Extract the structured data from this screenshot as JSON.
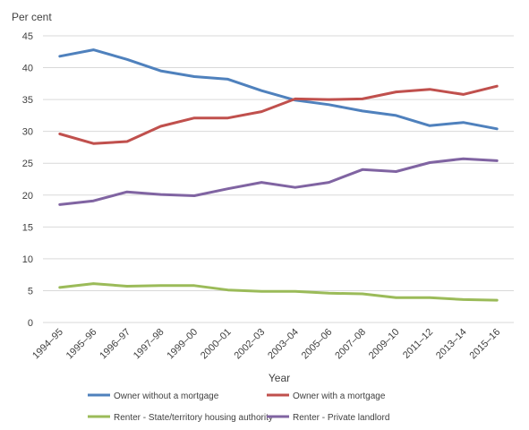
{
  "chart_data": {
    "type": "line",
    "title": "",
    "ylabel": "Per cent",
    "xlabel": "Year",
    "ylim": [
      0,
      45
    ],
    "yticks": [
      0,
      5,
      10,
      15,
      20,
      25,
      30,
      35,
      40,
      45
    ],
    "grid": "horizontal",
    "legend_position": "bottom",
    "categories": [
      "1994–95",
      "1995–96",
      "1996–97",
      "1997–98",
      "1999–00",
      "2000–01",
      "2002–03",
      "2003–04",
      "2005–06",
      "2007–08",
      "2009–10",
      "2011–12",
      "2013–14",
      "2015–16"
    ],
    "series": [
      {
        "name": "Owner without a mortgage",
        "color": "#4f81bd",
        "values": [
          41.8,
          42.8,
          41.3,
          39.5,
          38.6,
          38.2,
          36.4,
          34.9,
          34.2,
          33.2,
          32.5,
          30.9,
          31.4,
          30.4
        ]
      },
      {
        "name": "Owner with a mortgage",
        "color": "#c0504d",
        "values": [
          29.6,
          28.1,
          28.4,
          30.8,
          32.1,
          32.1,
          33.1,
          35.1,
          35.0,
          35.1,
          36.2,
          36.6,
          35.8,
          37.1
        ]
      },
      {
        "name": "Renter - State/territory housing authority",
        "color": "#9bbb59",
        "values": [
          5.5,
          6.1,
          5.7,
          5.8,
          5.8,
          5.1,
          4.9,
          4.9,
          4.6,
          4.5,
          3.9,
          3.9,
          3.6,
          3.5
        ]
      },
      {
        "name": "Renter - Private landlord",
        "color": "#8064a2",
        "values": [
          18.5,
          19.1,
          20.5,
          20.1,
          19.9,
          21.0,
          22.0,
          21.2,
          22.0,
          24.0,
          23.7,
          25.1,
          25.7,
          25.4
        ]
      }
    ]
  }
}
